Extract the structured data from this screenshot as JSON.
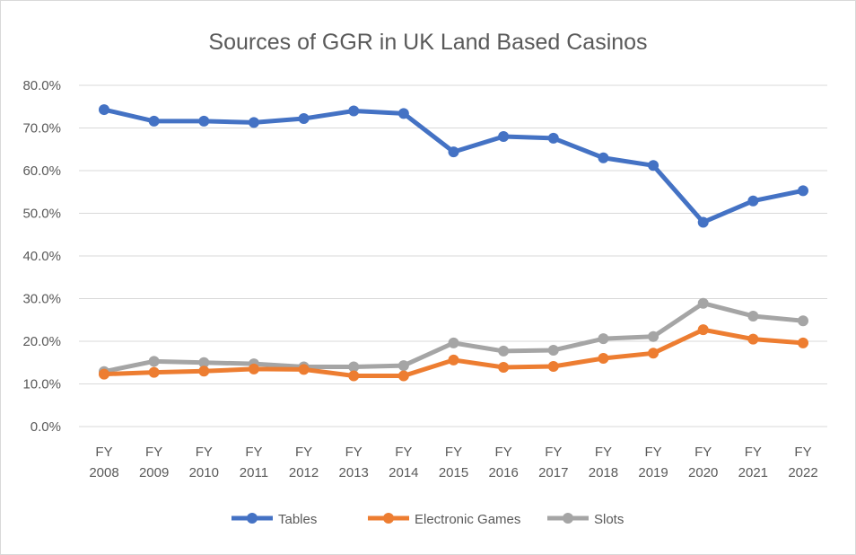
{
  "chart_data": {
    "type": "line",
    "title": "Sources of GGR in UK Land Based Casinos",
    "xlabel": "",
    "ylabel": "",
    "categories": [
      [
        "FY",
        "2008"
      ],
      [
        "FY",
        "2009"
      ],
      [
        "FY",
        "2010"
      ],
      [
        "FY",
        "2011"
      ],
      [
        "FY",
        "2012"
      ],
      [
        "FY",
        "2013"
      ],
      [
        "FY",
        "2014"
      ],
      [
        "FY",
        "2015"
      ],
      [
        "FY",
        "2016"
      ],
      [
        "FY",
        "2017"
      ],
      [
        "FY",
        "2018"
      ],
      [
        "FY",
        "2019"
      ],
      [
        "FY",
        "2020"
      ],
      [
        "FY",
        "2021"
      ],
      [
        "FY",
        "2022"
      ]
    ],
    "ylim": [
      0,
      80
    ],
    "yticks": [
      "0.0%",
      "10.0%",
      "20.0%",
      "30.0%",
      "40.0%",
      "50.0%",
      "60.0%",
      "70.0%",
      "80.0%"
    ],
    "grid": true,
    "legend": "bottom",
    "series": [
      {
        "name": "Tables",
        "color": "#4472C4",
        "values": [
          74.3,
          71.6,
          71.6,
          71.3,
          72.2,
          74.0,
          73.4,
          64.4,
          68.0,
          67.6,
          63.0,
          61.2,
          47.9,
          52.9,
          55.3
        ]
      },
      {
        "name": "Electronic Games",
        "color": "#ED7D31",
        "values": [
          12.3,
          12.7,
          13.0,
          13.5,
          13.4,
          11.9,
          11.9,
          15.6,
          13.9,
          14.1,
          16.0,
          17.2,
          22.7,
          20.5,
          19.6
        ]
      },
      {
        "name": "Slots",
        "color": "#A5A5A5",
        "values": [
          12.9,
          15.3,
          15.0,
          14.7,
          14.0,
          14.0,
          14.3,
          19.6,
          17.7,
          17.9,
          20.6,
          21.1,
          28.9,
          25.9,
          24.8
        ]
      }
    ]
  }
}
